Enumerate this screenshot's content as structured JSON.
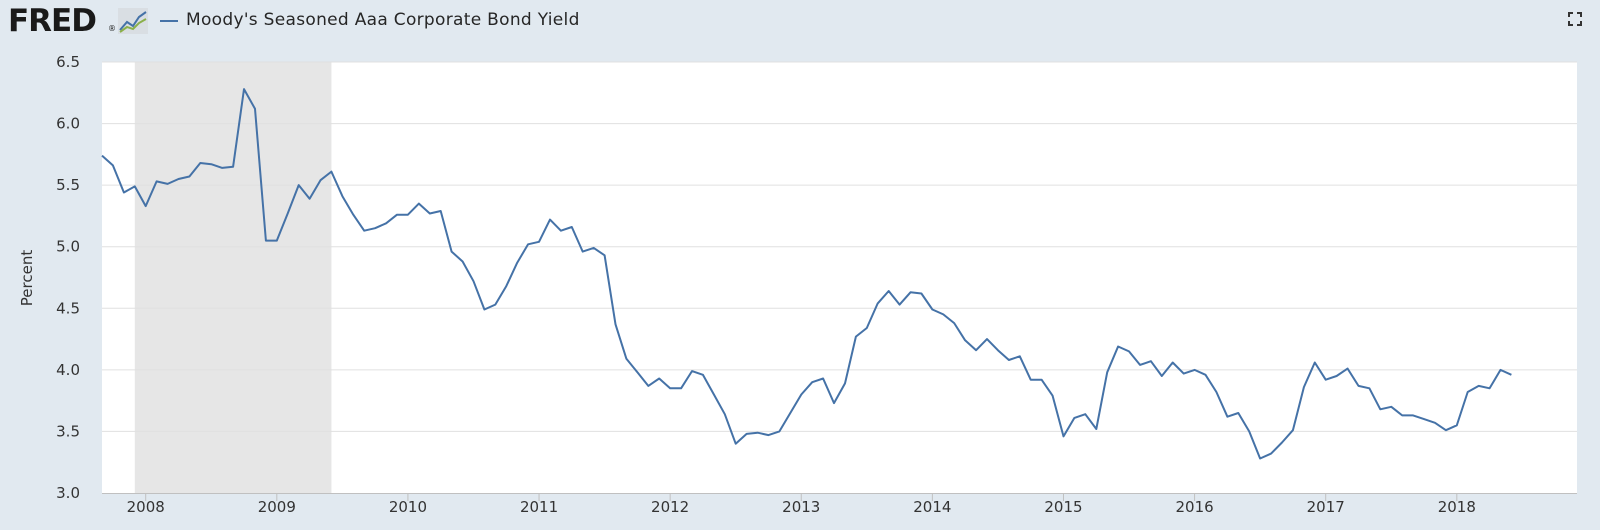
{
  "header": {
    "logo_text": "FRED",
    "logo_reg": "®",
    "legend_label": "Moody's Seasoned Aaa Corporate Bond Yield",
    "fullscreen_icon": "expand-icon"
  },
  "colors": {
    "series": "#4572a7",
    "recession": "#e6e6e6",
    "background": "#e1e9f0",
    "plot_background": "#ffffff",
    "grid": "#e0e0e0"
  },
  "chart_data": {
    "type": "line",
    "title": "",
    "xlabel": "",
    "ylabel": "Percent",
    "ylim": [
      3.0,
      6.5
    ],
    "yticks": [
      "3.0",
      "3.5",
      "4.0",
      "4.5",
      "5.0",
      "5.5",
      "6.0",
      "6.5"
    ],
    "xlim": [
      "2007-09",
      "2018-12"
    ],
    "xticks": [
      "2008",
      "2009",
      "2010",
      "2011",
      "2012",
      "2013",
      "2014",
      "2015",
      "2016",
      "2017",
      "2018"
    ],
    "grid": true,
    "legend": "top-left",
    "recession_shading": [
      {
        "start": "2007-12",
        "end": "2009-06"
      }
    ],
    "series": [
      {
        "name": "Moody's Seasoned Aaa Corporate Bond Yield",
        "x": [
          "2007-09",
          "2007-10",
          "2007-11",
          "2007-12",
          "2008-01",
          "2008-02",
          "2008-03",
          "2008-04",
          "2008-05",
          "2008-06",
          "2008-07",
          "2008-08",
          "2008-09",
          "2008-10",
          "2008-11",
          "2008-12",
          "2009-01",
          "2009-02",
          "2009-03",
          "2009-04",
          "2009-05",
          "2009-06",
          "2009-07",
          "2009-08",
          "2009-09",
          "2009-10",
          "2009-11",
          "2009-12",
          "2010-01",
          "2010-02",
          "2010-03",
          "2010-04",
          "2010-05",
          "2010-06",
          "2010-07",
          "2010-08",
          "2010-09",
          "2010-10",
          "2010-11",
          "2010-12",
          "2011-01",
          "2011-02",
          "2011-03",
          "2011-04",
          "2011-05",
          "2011-06",
          "2011-07",
          "2011-08",
          "2011-09",
          "2011-10",
          "2011-11",
          "2011-12",
          "2012-01",
          "2012-02",
          "2012-03",
          "2012-04",
          "2012-05",
          "2012-06",
          "2012-07",
          "2012-08",
          "2012-09",
          "2012-10",
          "2012-11",
          "2012-12",
          "2013-01",
          "2013-02",
          "2013-03",
          "2013-04",
          "2013-05",
          "2013-06",
          "2013-07",
          "2013-08",
          "2013-09",
          "2013-10",
          "2013-11",
          "2013-12",
          "2014-01",
          "2014-02",
          "2014-03",
          "2014-04",
          "2014-05",
          "2014-06",
          "2014-07",
          "2014-08",
          "2014-09",
          "2014-10",
          "2014-11",
          "2014-12",
          "2015-01",
          "2015-02",
          "2015-03",
          "2015-04",
          "2015-05",
          "2015-06",
          "2015-07",
          "2015-08",
          "2015-09",
          "2015-10",
          "2015-11",
          "2015-12",
          "2016-01",
          "2016-02",
          "2016-03",
          "2016-04",
          "2016-05",
          "2016-06",
          "2016-07",
          "2016-08",
          "2016-09",
          "2016-10",
          "2016-11",
          "2016-12",
          "2017-01",
          "2017-02",
          "2017-03",
          "2017-04",
          "2017-05",
          "2017-06",
          "2017-07",
          "2017-08",
          "2017-09",
          "2017-10",
          "2017-11",
          "2017-12",
          "2018-01",
          "2018-02",
          "2018-03",
          "2018-04",
          "2018-05",
          "2018-06"
        ],
        "values": [
          5.74,
          5.66,
          5.44,
          5.49,
          5.33,
          5.53,
          5.51,
          5.55,
          5.57,
          5.68,
          5.67,
          5.64,
          5.65,
          6.28,
          6.12,
          5.05,
          5.05,
          5.27,
          5.5,
          5.39,
          5.54,
          5.61,
          5.41,
          5.26,
          5.13,
          5.15,
          5.19,
          5.26,
          5.26,
          5.35,
          5.27,
          5.29,
          4.96,
          4.88,
          4.72,
          4.49,
          4.53,
          4.68,
          4.87,
          5.02,
          5.04,
          5.22,
          5.13,
          5.16,
          4.96,
          4.99,
          4.93,
          4.37,
          4.09,
          3.98,
          3.87,
          3.93,
          3.85,
          3.85,
          3.99,
          3.96,
          3.8,
          3.64,
          3.4,
          3.48,
          3.49,
          3.47,
          3.5,
          3.65,
          3.8,
          3.9,
          3.93,
          3.73,
          3.89,
          4.27,
          4.34,
          4.54,
          4.64,
          4.53,
          4.63,
          4.62,
          4.49,
          4.45,
          4.38,
          4.24,
          4.16,
          4.25,
          4.16,
          4.08,
          4.11,
          3.92,
          3.92,
          3.79,
          3.46,
          3.61,
          3.64,
          3.52,
          3.98,
          4.19,
          4.15,
          4.04,
          4.07,
          3.95,
          4.06,
          3.97,
          4.0,
          3.96,
          3.82,
          3.62,
          3.65,
          3.5,
          3.28,
          3.32,
          3.41,
          3.51,
          3.86,
          4.06,
          3.92,
          3.95,
          4.01,
          3.87,
          3.85,
          3.68,
          3.7,
          3.63,
          3.63,
          3.6,
          3.57,
          3.51,
          3.55,
          3.82,
          3.87,
          3.85,
          4.0,
          3.96
        ]
      }
    ]
  }
}
